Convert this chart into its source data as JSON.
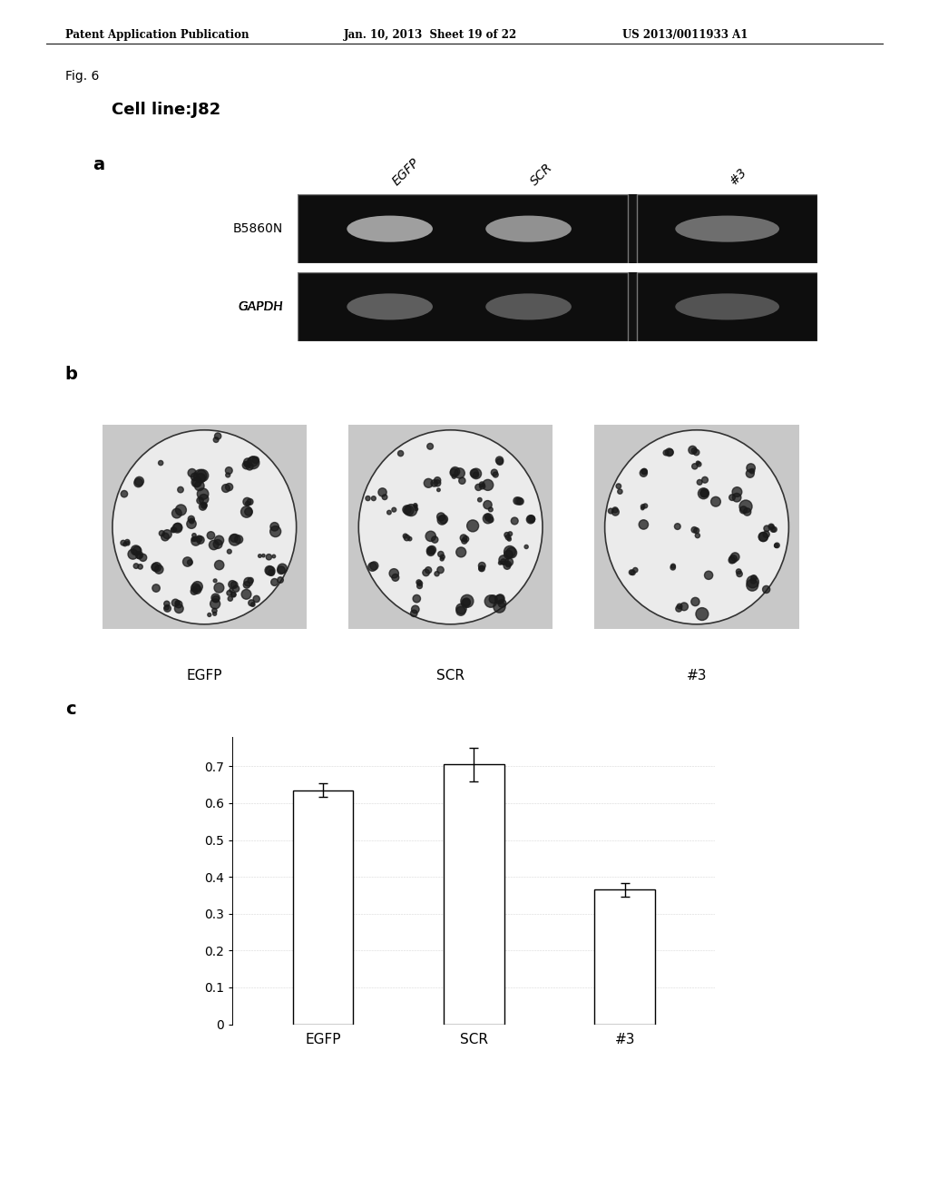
{
  "header_left": "Patent Application Publication",
  "header_mid": "Jan. 10, 2013  Sheet 19 of 22",
  "header_right": "US 2013/0011933 A1",
  "fig_label": "Fig. 6",
  "cell_line": "Cell line:J82",
  "panel_a_label": "a",
  "panel_b_label": "b",
  "panel_c_label": "c",
  "row1_label": "B5860N",
  "row2_label": "GAPDH",
  "col_labels": [
    "EGFP",
    "SCR",
    "#3"
  ],
  "bar_values": [
    0.635,
    0.705,
    0.365
  ],
  "bar_errors": [
    0.018,
    0.045,
    0.018
  ],
  "bar_color": "#ffffff",
  "bar_edgecolor": "#000000",
  "yticks": [
    0,
    0.1,
    0.2,
    0.3,
    0.4,
    0.5,
    0.6,
    0.7
  ],
  "background_color": "#ffffff",
  "text_color": "#000000",
  "gel_bg": "#0d0d0d",
  "band1_colors": [
    "#b0b0b0",
    "#a0a0a0",
    "#808080"
  ],
  "band2_colors": [
    "#686868",
    "#606060",
    "#606060"
  ],
  "petri_bg": "#cccccc",
  "petri_fill": "#e8e8e8",
  "colony_color": "#222222",
  "n_colonies": [
    60,
    55,
    35
  ]
}
